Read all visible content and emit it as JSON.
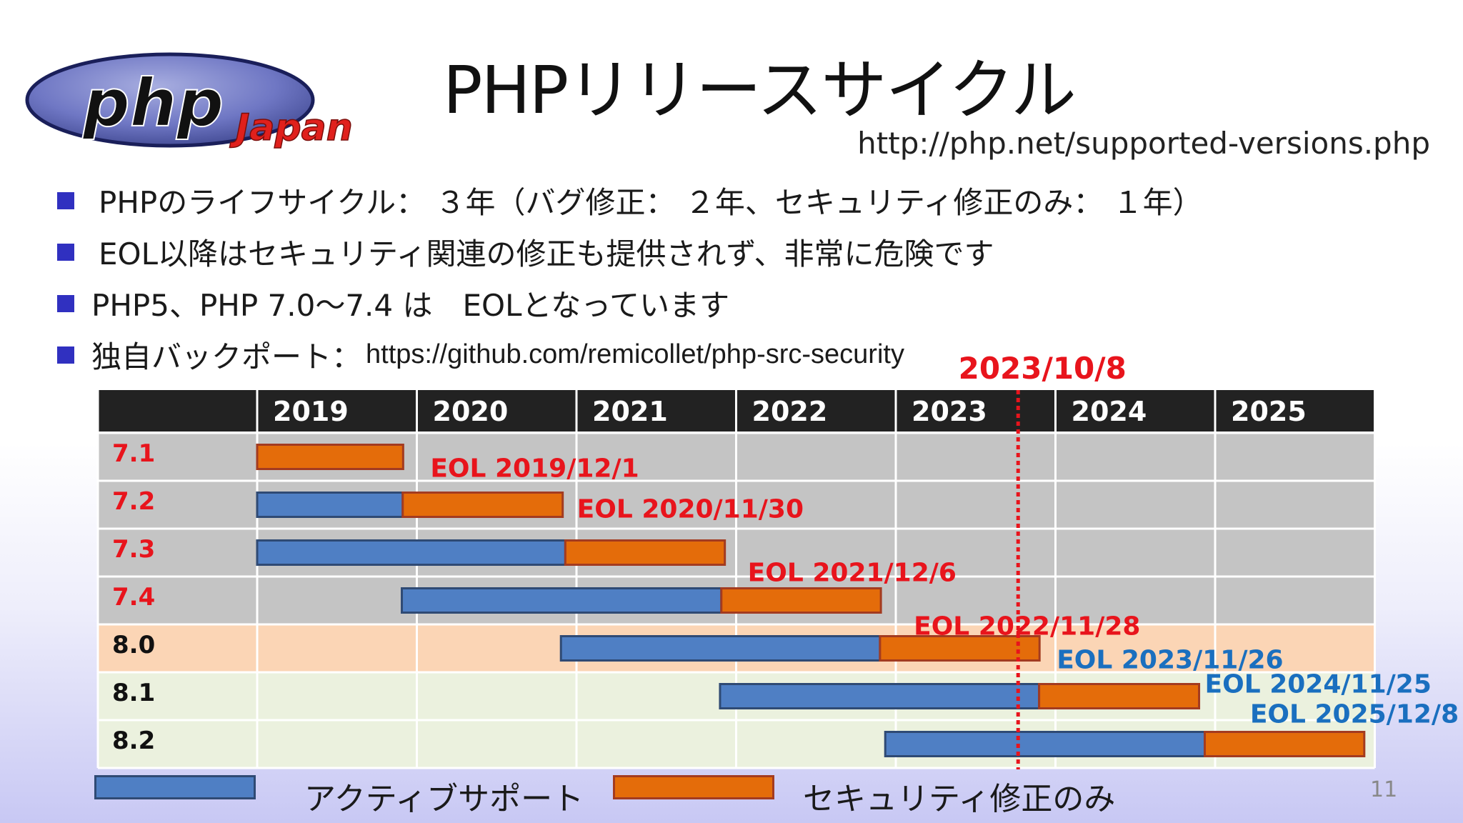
{
  "header": {
    "title": "PHPリリースサイクル",
    "url": "http://php.net/supported-versions.php",
    "logo_text": "php",
    "logo_subtext": "Japan"
  },
  "bullets": [
    {
      "text": "PHPのライフサイクル： ３年（バグ修正： ２年、セキュリティ修正のみ： １年）"
    },
    {
      "text": "EOL以降はセキュリティ関連の修正も提供されず、非常に危険です"
    },
    {
      "text": "PHP5、PHP 7.0～7.4 は　EOLとなっています"
    },
    {
      "text": "独自バックポート：",
      "link": "https://github.com/remicollet/php-src-security"
    }
  ],
  "legend": {
    "active": "アクティブサポート",
    "security": "セキュリティ修正のみ"
  },
  "page_number": "11",
  "colors": {
    "active": "#4f7fc4",
    "security": "#e46c0a",
    "bar_border_active": "#2f4a74",
    "bar_border_security": "#a33b20",
    "eol_red": "#e8141c",
    "eol_blue": "#1a6fbf",
    "header_bg": "#222222",
    "row_gray": "#c4c4c4",
    "row_orange": "#fbd5b5",
    "row_green": "#ebf1de"
  },
  "chart_data": {
    "type": "gantt",
    "years": [
      "2019",
      "2020",
      "2021",
      "2022",
      "2023",
      "2024",
      "2025"
    ],
    "x_range": [
      "2019-01-01",
      "2026-01-01"
    ],
    "today_label": "2023/10/8",
    "today": "2023-10-08",
    "versions": [
      {
        "name": "7.1",
        "active_start": null,
        "active_end": null,
        "security_start": "2019-01-01",
        "eol": "2019-12-01",
        "eol_label": "EOL 2019/12/1",
        "label_color": "red",
        "row": "gray"
      },
      {
        "name": "7.2",
        "active_start": "2019-01-01",
        "active_end": "2019-11-30",
        "security_start": "2019-11-30",
        "eol": "2020-11-30",
        "eol_label": "EOL 2020/11/30",
        "label_color": "red",
        "row": "gray"
      },
      {
        "name": "7.3",
        "active_start": "2019-01-01",
        "active_end": "2020-12-06",
        "security_start": "2020-12-06",
        "eol": "2021-12-06",
        "eol_label": "EOL 2021/12/6",
        "label_color": "red",
        "row": "gray"
      },
      {
        "name": "7.4",
        "active_start": "2019-11-28",
        "active_end": "2021-11-28",
        "security_start": "2021-11-28",
        "eol": "2022-11-28",
        "eol_label": "EOL 2022/11/28",
        "label_color": "red",
        "row": "gray"
      },
      {
        "name": "8.0",
        "active_start": "2020-11-26",
        "active_end": "2022-11-26",
        "security_start": "2022-11-26",
        "eol": "2023-11-26",
        "eol_label": "EOL 2023/11/26",
        "label_color": "blue",
        "row": "orange"
      },
      {
        "name": "8.1",
        "active_start": "2021-11-25",
        "active_end": "2023-11-25",
        "security_start": "2023-11-25",
        "eol": "2024-11-25",
        "eol_label": "EOL 2024/11/25",
        "label_color": "blue",
        "row": "green"
      },
      {
        "name": "8.2",
        "active_start": "2022-12-08",
        "active_end": "2024-12-08",
        "security_start": "2024-12-08",
        "eol": "2025-12-08",
        "eol_label": "EOL 2025/12/8",
        "label_color": "blue",
        "row": "green"
      }
    ]
  }
}
